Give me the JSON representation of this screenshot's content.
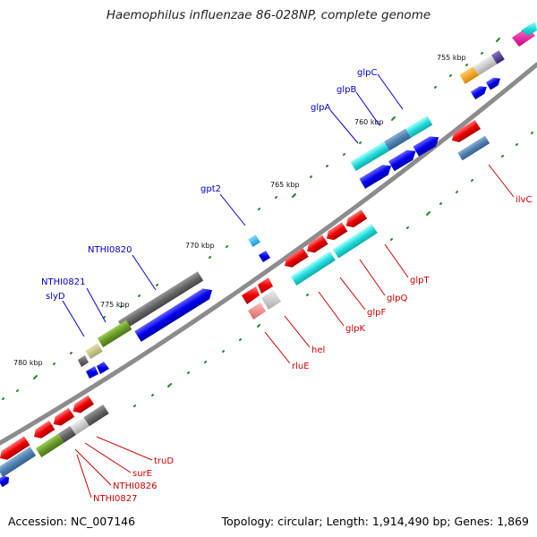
{
  "title": "Haemophilus influenzae 86-028NP, complete genome",
  "footer": {
    "accession": "Accession: NC_007146",
    "summary": "Topology: circular; Length: 1,914,490 bp; Genes: 1,869"
  },
  "scale_labels": [
    "755 kbp",
    "760 kbp",
    "765 kbp",
    "770 kbp",
    "775 kbp",
    "780 kbp"
  ],
  "gene_labels_top": [
    "glpC",
    "glpB",
    "glpA",
    "gpt2",
    "NTHI0820",
    "NTHI0821",
    "slyD"
  ],
  "gene_labels_bottom": [
    "ilvC",
    "glpT",
    "glpQ",
    "glpF",
    "glpK",
    "hel",
    "rluE",
    "truD",
    "surE",
    "NTHI0826",
    "NTHI0827"
  ],
  "colors": {
    "backbone": "#8c8c8c",
    "label_forward": "#0000cc",
    "label_reverse": "#cc0000",
    "cds_blue": "#0000ee",
    "red": "#ee0000",
    "cyan": "#22dddd",
    "steelblue": "#4f81b0",
    "gray": "#666666",
    "olive": "#6a9a2a",
    "tick": "#228822"
  }
}
